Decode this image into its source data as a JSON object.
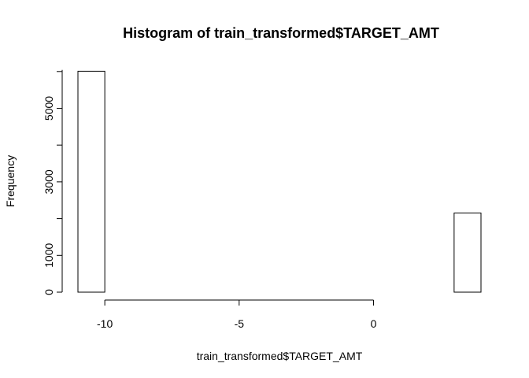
{
  "chart_data": {
    "type": "bar",
    "title": "Histogram of train_transformed$TARGET_AMT",
    "xlabel": "train_transformed$TARGET_AMT",
    "ylabel": "Frequency",
    "xlim": [
      -11,
      4
    ],
    "ylim": [
      0,
      6000
    ],
    "x_ticks": [
      -10,
      -5,
      0
    ],
    "y_ticks": [
      0,
      1000,
      3000,
      5000
    ],
    "bins": [
      {
        "x0": -11,
        "x1": -10,
        "count": 6008
      },
      {
        "x0": -10,
        "x1": -9,
        "count": 0
      },
      {
        "x0": -9,
        "x1": -8,
        "count": 0
      },
      {
        "x0": -8,
        "x1": -7,
        "count": 0
      },
      {
        "x0": -7,
        "x1": -6,
        "count": 0
      },
      {
        "x0": -6,
        "x1": -5,
        "count": 0
      },
      {
        "x0": -5,
        "x1": -4,
        "count": 0
      },
      {
        "x0": -4,
        "x1": -3,
        "count": 0
      },
      {
        "x0": -3,
        "x1": -2,
        "count": 0
      },
      {
        "x0": -2,
        "x1": -1,
        "count": 0
      },
      {
        "x0": -1,
        "x1": 0,
        "count": 0
      },
      {
        "x0": 0,
        "x1": 1,
        "count": 0
      },
      {
        "x0": 1,
        "x1": 2,
        "count": 0
      },
      {
        "x0": 2,
        "x1": 3,
        "count": 0
      },
      {
        "x0": 3,
        "x1": 4,
        "count": 2153
      }
    ],
    "grid": false,
    "legend": "none"
  }
}
